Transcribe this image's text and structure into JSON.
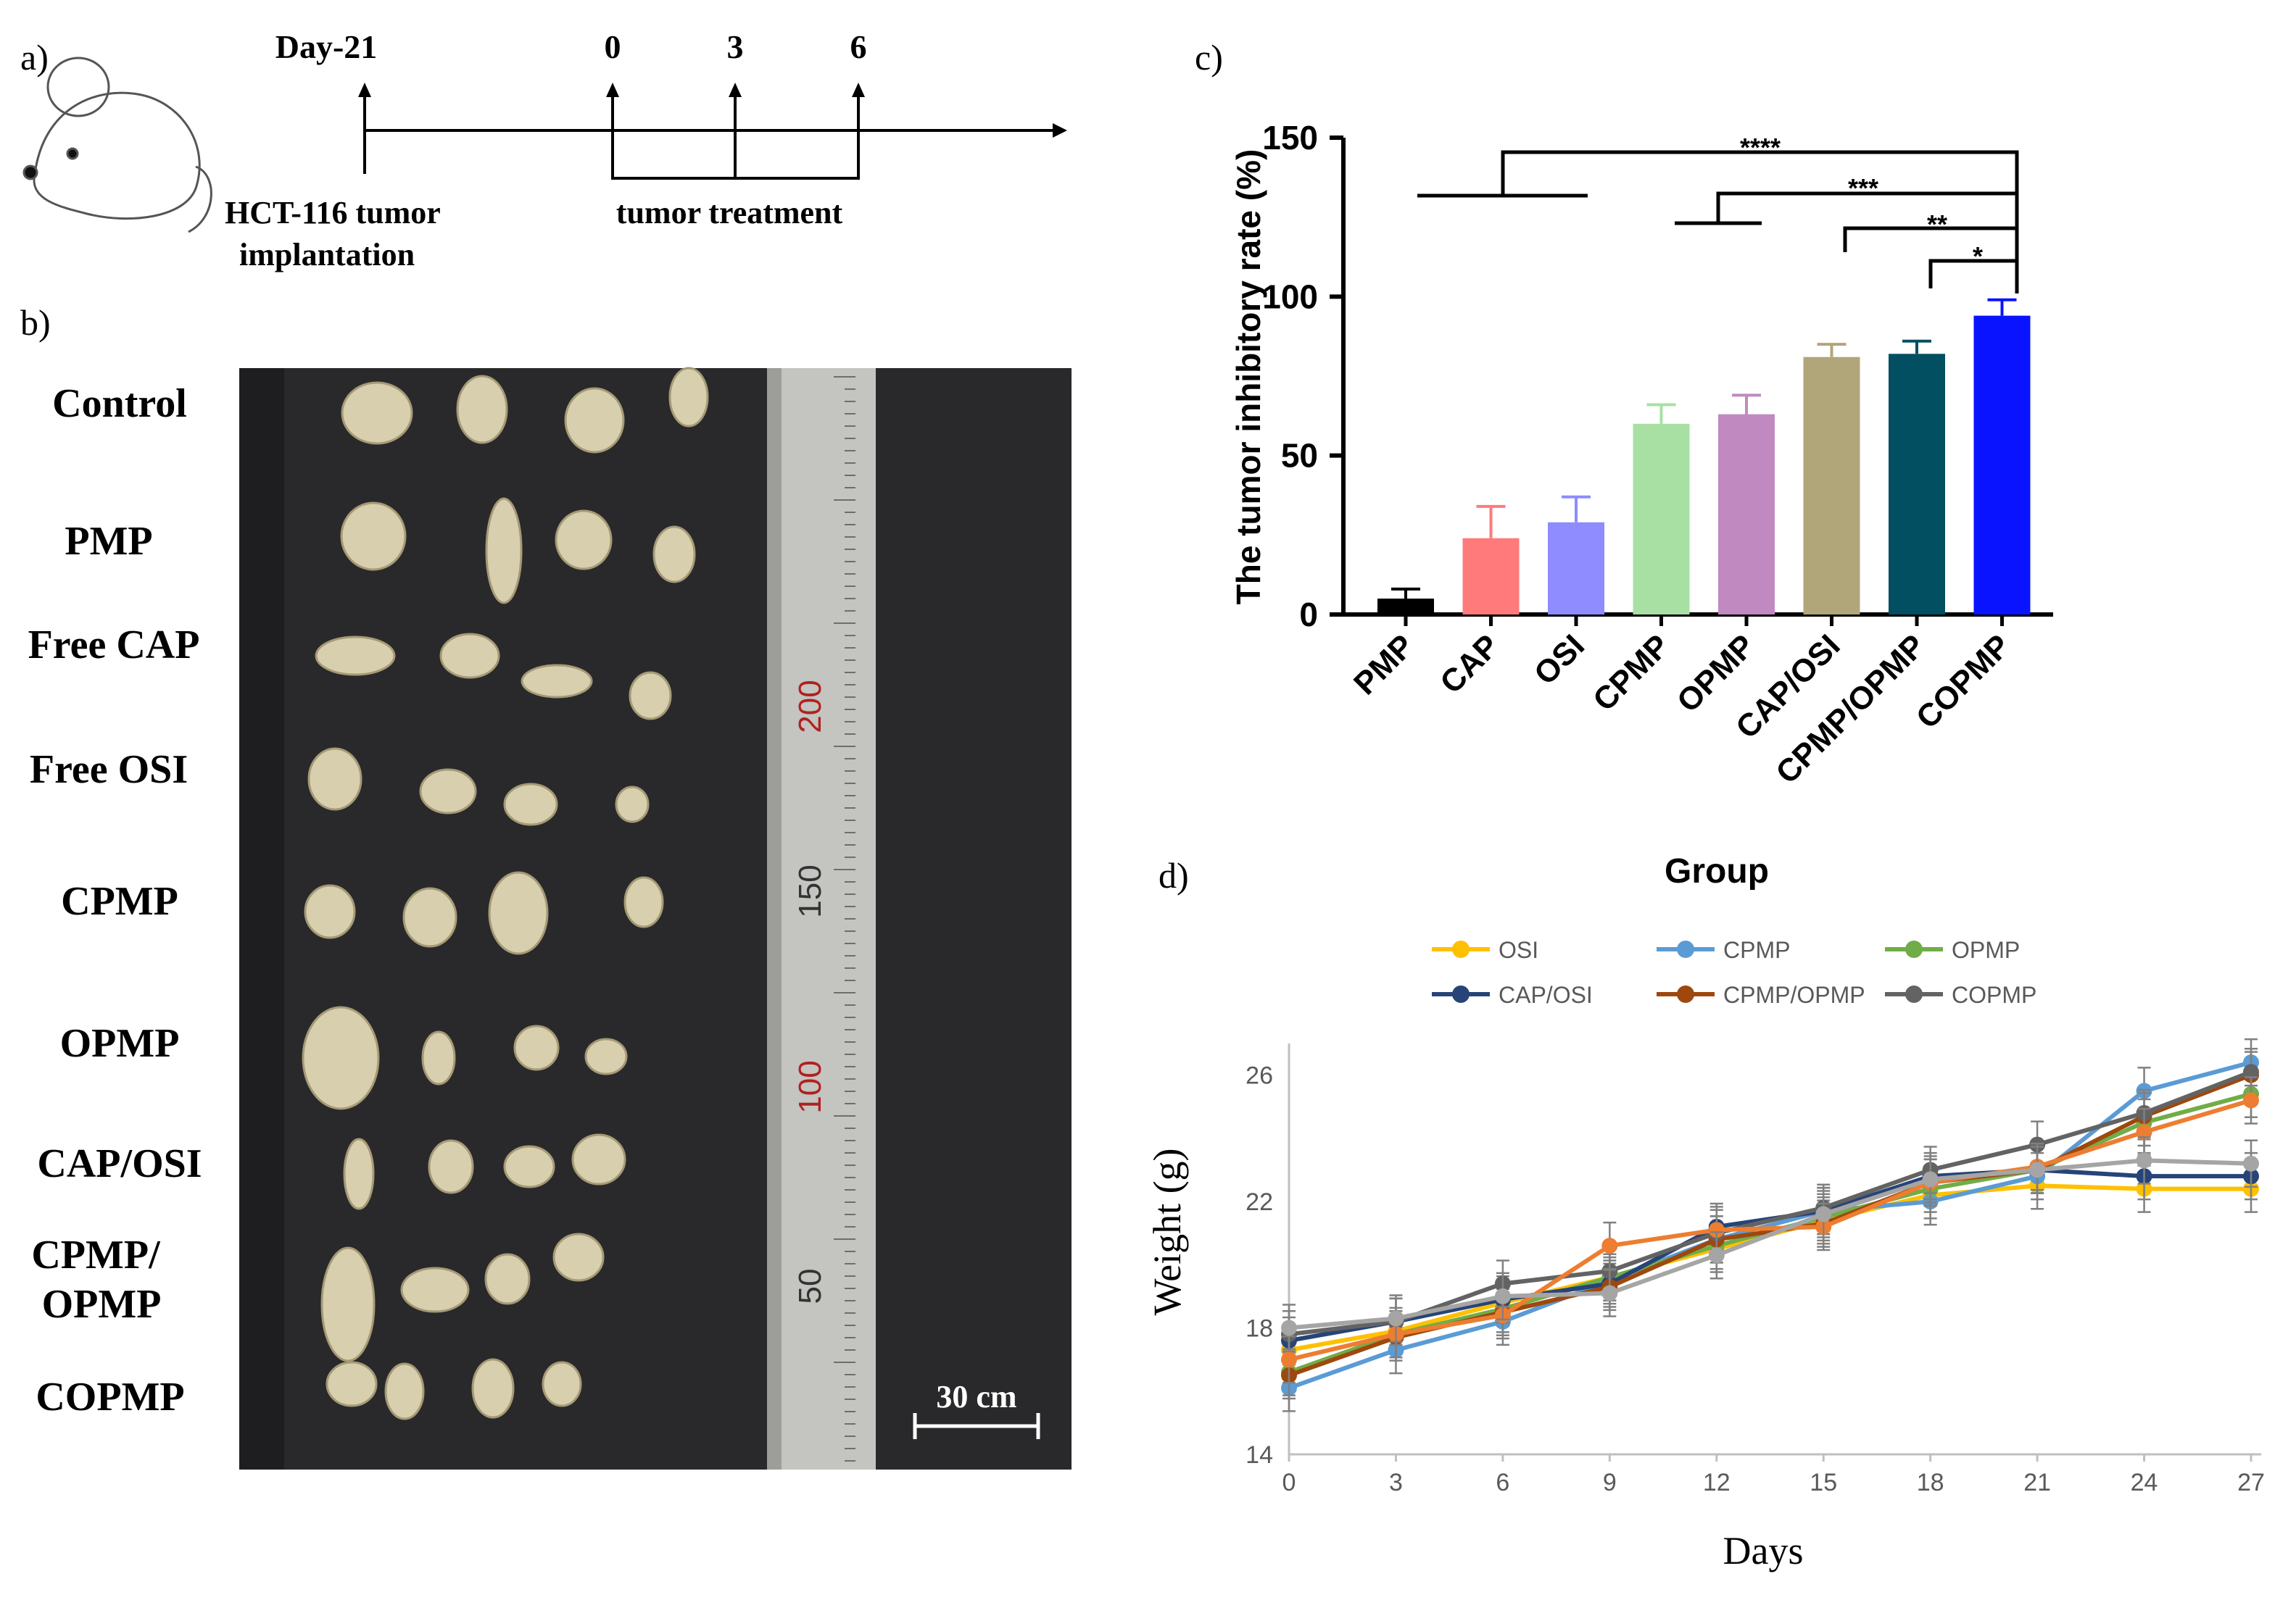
{
  "panel_labels": {
    "a": "a)",
    "b": "b)",
    "c": "c)",
    "d": "d)"
  },
  "timeline": {
    "events": [
      {
        "label": "Day-21",
        "day": -21
      },
      {
        "label": "0",
        "day": 0
      },
      {
        "label": "3",
        "day": 3
      },
      {
        "label": "6",
        "day": 6
      }
    ],
    "implant_caption_1": "HCT-116 tumor",
    "implant_caption_2": "implantation",
    "treatment_caption": "tumor treatment"
  },
  "photo": {
    "row_labels": [
      "Control",
      "PMP",
      "Free CAP",
      "Free OSI",
      "CPMP",
      "OPMP",
      "CAP/OSI",
      "CPMP/",
      "OPMP",
      "COPMP"
    ],
    "ruler_labels": [
      "200",
      "150",
      "100",
      "50"
    ],
    "scale_bar": "30 cm",
    "colors": {
      "background": "#2a2a2c",
      "tumor": "#d8cfae",
      "ruler": "#b9b9b4"
    }
  },
  "chart_data": [
    {
      "type": "bar",
      "title": "",
      "xlabel": "",
      "ylabel": "The tumor inhibitory rate (%)",
      "ylim": [
        0,
        150
      ],
      "yticks": [
        "0",
        "50",
        "100",
        "150"
      ],
      "categories": [
        "PMP",
        "CAP",
        "OSI",
        "CPMP",
        "OPMP",
        "CAP/OSI",
        "CPMP/OPMP",
        "COPMP"
      ],
      "values": [
        5,
        24,
        29,
        60,
        63,
        81,
        82,
        94
      ],
      "errors": [
        3,
        10,
        8,
        6,
        6,
        4,
        4,
        5
      ],
      "colors": [
        "#000000",
        "#ff7a7a",
        "#8e8cff",
        "#a8e0a4",
        "#c08ac0",
        "#b1a67a",
        "#034f62",
        "#0a13ff"
      ],
      "significance": [
        "****",
        "***",
        "**",
        "*"
      ]
    },
    {
      "type": "line",
      "title": "Group",
      "xlabel": "Days",
      "ylabel": "Weight (g)",
      "ylim": [
        14,
        27
      ],
      "x": [
        0,
        3,
        6,
        9,
        12,
        15,
        18,
        21,
        24,
        27
      ],
      "yticks": [
        "14",
        "18",
        "22",
        "26"
      ],
      "legend": [
        "OSI",
        "CPMP",
        "OPMP",
        "CAP/OSI",
        "CPMP/OPMP",
        "COPMP"
      ],
      "series": [
        {
          "name": "OSI",
          "color": "#ffc000",
          "legend": true,
          "values": [
            17.3,
            17.9,
            18.8,
            19.6,
            20.5,
            21.4,
            22.2,
            22.5,
            22.4,
            22.4
          ]
        },
        {
          "name": "CPMP",
          "color": "#5b9bd5",
          "legend": true,
          "values": [
            16.1,
            17.3,
            18.2,
            19.5,
            20.8,
            21.7,
            22.0,
            22.8,
            25.5,
            26.4
          ]
        },
        {
          "name": "OPMP",
          "color": "#70ad47",
          "legend": true,
          "values": [
            16.6,
            17.8,
            18.6,
            19.6,
            20.6,
            21.5,
            22.4,
            23.0,
            24.5,
            25.4
          ]
        },
        {
          "name": "CAP/OSI",
          "color": "#264478",
          "legend": true,
          "values": [
            17.6,
            18.2,
            18.9,
            19.4,
            21.2,
            21.7,
            22.8,
            23.0,
            22.8,
            22.8
          ]
        },
        {
          "name": "CPMP/OPMP",
          "color": "#9e480e",
          "legend": true,
          "values": [
            16.5,
            17.7,
            18.5,
            19.3,
            20.8,
            21.3,
            22.6,
            23.0,
            24.7,
            26.0
          ]
        },
        {
          "name": "COPMP",
          "color": "#636363",
          "legend": true,
          "values": [
            17.8,
            18.2,
            19.4,
            19.8,
            21.0,
            21.8,
            23.0,
            23.8,
            24.8,
            26.1
          ]
        },
        {
          "name": "",
          "color": "#ed7d31",
          "legend": false,
          "values": [
            17.0,
            17.8,
            18.4,
            20.6,
            21.1,
            21.2,
            22.6,
            23.1,
            24.2,
            25.2
          ]
        },
        {
          "name": "",
          "color": "#a5a5a5",
          "legend": false,
          "values": [
            18.0,
            18.3,
            19.0,
            19.1,
            20.3,
            21.6,
            22.7,
            23.0,
            23.3,
            23.2
          ]
        }
      ]
    }
  ]
}
